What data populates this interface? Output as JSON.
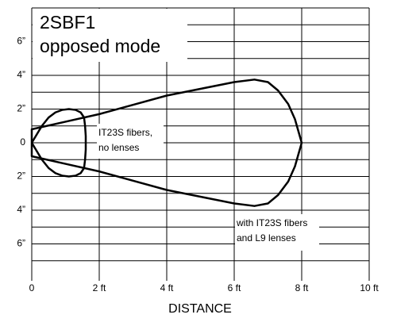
{
  "chart_data": {
    "type": "line",
    "title": "2SBF1",
    "subtitle": "opposed mode",
    "x_label": "DISTANCE",
    "xlim": [
      0,
      10
    ],
    "ylim": [
      -8,
      8
    ],
    "xticks": [
      0,
      {
        "value": 2,
        "label": "2 ft"
      },
      {
        "value": 4,
        "label": "4 ft"
      },
      {
        "value": 6,
        "label": "6 ft"
      },
      {
        "value": 8,
        "label": "8 ft"
      },
      {
        "value": 10,
        "label": "10 ft"
      }
    ],
    "yticks": [
      {
        "value": 6,
        "label": "6”"
      },
      {
        "value": 4,
        "label": "4”"
      },
      {
        "value": 2,
        "label": "2”"
      },
      0,
      {
        "value": -2,
        "label": "2”"
      },
      {
        "value": -4,
        "label": "4”"
      },
      {
        "value": -6,
        "label": "6”"
      }
    ],
    "y_minor_ticks": [
      8,
      7,
      5,
      3,
      1,
      -1,
      -3,
      -5,
      -7
    ],
    "grid": true,
    "series": [
      {
        "color": "#000000",
        "x": [
          0,
          0,
          1,
          2,
          3,
          4,
          5,
          5.5,
          6,
          6.6,
          7,
          7.3,
          7.6,
          7.8,
          8,
          7.8,
          7.6,
          7.3,
          7,
          6.6,
          6,
          5.5,
          5,
          4,
          3,
          2,
          1,
          0,
          0
        ],
        "values": [
          0,
          0.8,
          1.25,
          1.7,
          2.25,
          2.8,
          3.2,
          3.4,
          3.6,
          3.75,
          3.6,
          3.1,
          2.3,
          1.4,
          0,
          -1.4,
          -2.3,
          -3.1,
          -3.6,
          -3.75,
          -3.6,
          -3.4,
          -3.2,
          -2.8,
          -2.25,
          -1.7,
          -1.25,
          -0.8,
          0
        ]
      },
      {
        "color": "#000000",
        "x": [
          0,
          0.15,
          0.3,
          0.5,
          0.7,
          0.9,
          1.1,
          1.3,
          1.45,
          1.55,
          1.58,
          1.6,
          1.6,
          1.58,
          1.55,
          1.45,
          1.3,
          1.1,
          0.9,
          0.7,
          0.5,
          0.3,
          0.15,
          0
        ],
        "values": [
          0,
          0.5,
          1.0,
          1.5,
          1.8,
          1.95,
          2.0,
          1.95,
          1.8,
          1.5,
          1.0,
          0.4,
          -0.4,
          -1.0,
          -1.5,
          -1.8,
          -1.95,
          -2.0,
          -1.95,
          -1.8,
          -1.5,
          -1.0,
          -0.5,
          0
        ]
      }
    ],
    "annotations": [
      {
        "lines": [
          "IT23S fibers,",
          "no lenses"
        ]
      },
      {
        "lines": [
          "with IT23S fibers",
          "and L9 lenses"
        ]
      }
    ]
  }
}
